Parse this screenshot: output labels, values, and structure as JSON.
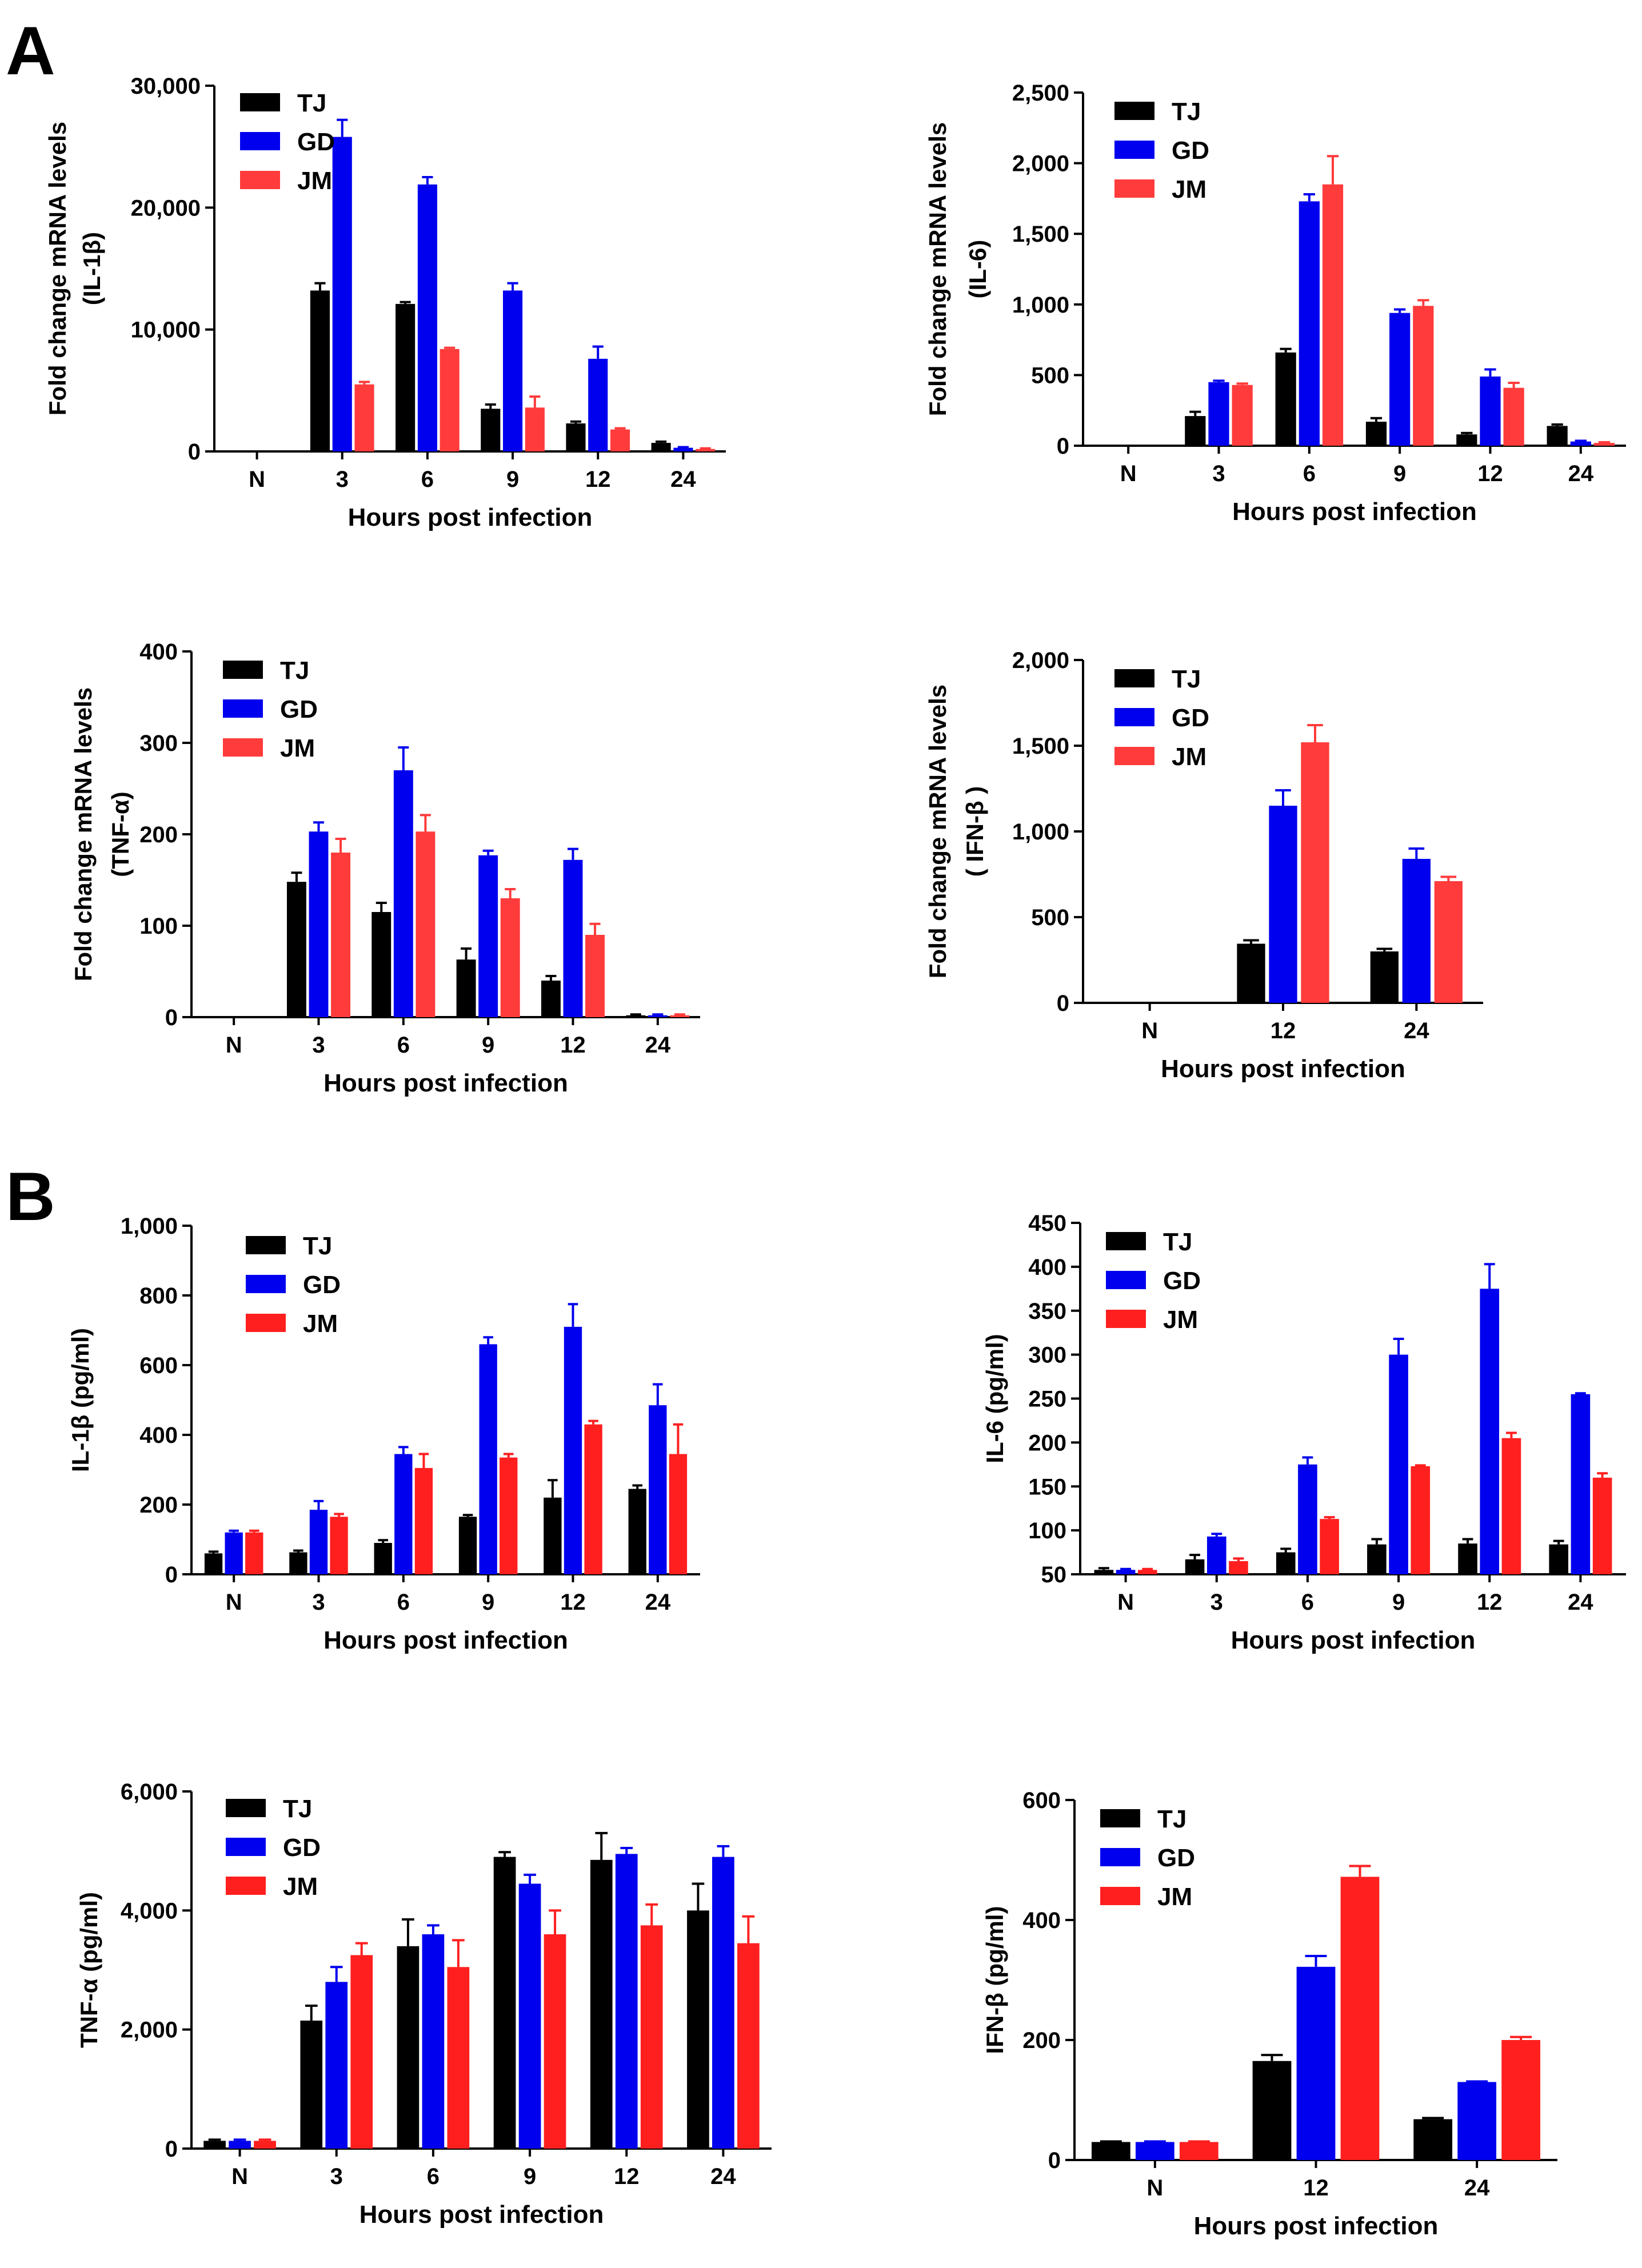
{
  "panel_labels": [
    "A",
    "B"
  ],
  "colors": {
    "TJ": "#000000",
    "GD": "#0000ee",
    "JM": "#ff3b3b",
    "JM_B": "#ff1f1f"
  },
  "chart_data": [
    {
      "type": "bar",
      "title": "",
      "xlabel": "Hours post infection",
      "ylabel": [
        "Fold change mRNA levels",
        "(IL-1β)"
      ],
      "categories": [
        "N",
        "3",
        "6",
        "9",
        "12",
        "24"
      ],
      "ylim": [
        0,
        30000
      ],
      "yticks": [
        0,
        10000,
        20000,
        30000
      ],
      "ytick_labels": [
        "0",
        "10,000",
        "20,000",
        "30,000"
      ],
      "legend": [
        "TJ",
        "GD",
        "JM"
      ],
      "series": [
        {
          "name": "TJ",
          "values": [
            0,
            13200,
            12100,
            3500,
            2300,
            700
          ],
          "errors": [
            0,
            600,
            150,
            350,
            150,
            100
          ]
        },
        {
          "name": "GD",
          "values": [
            0,
            25800,
            21900,
            13200,
            7600,
            300
          ],
          "errors": [
            0,
            1400,
            600,
            600,
            1000,
            50
          ]
        },
        {
          "name": "JM",
          "values": [
            0,
            5500,
            8400,
            3600,
            1800,
            200
          ],
          "errors": [
            0,
            200,
            100,
            900,
            100,
            50
          ]
        }
      ]
    },
    {
      "type": "bar",
      "title": "",
      "xlabel": "Hours post infection",
      "ylabel": [
        "Fold change mRNA levels",
        "(IL-6)"
      ],
      "categories": [
        "N",
        "3",
        "6",
        "9",
        "12",
        "24"
      ],
      "ylim": [
        0,
        2500
      ],
      "yticks": [
        0,
        500,
        1000,
        1500,
        2000,
        2500
      ],
      "ytick_labels": [
        "0",
        "500",
        "1,000",
        "1,500",
        "2,000",
        "2,500"
      ],
      "legend": [
        "TJ",
        "GD",
        "JM"
      ],
      "series": [
        {
          "name": "TJ",
          "values": [
            0,
            210,
            660,
            170,
            80,
            140
          ],
          "errors": [
            0,
            30,
            25,
            25,
            10,
            10
          ]
        },
        {
          "name": "GD",
          "values": [
            0,
            450,
            1730,
            940,
            490,
            30
          ],
          "errors": [
            0,
            10,
            50,
            25,
            50,
            5
          ]
        },
        {
          "name": "JM",
          "values": [
            0,
            430,
            1850,
            990,
            410,
            20
          ],
          "errors": [
            0,
            10,
            200,
            40,
            35,
            5
          ]
        }
      ]
    },
    {
      "type": "bar",
      "title": "",
      "xlabel": "Hours post infection",
      "ylabel": [
        "Fold change mRNA levels",
        "(TNF-α)"
      ],
      "categories": [
        "N",
        "3",
        "6",
        "9",
        "12",
        "24"
      ],
      "ylim": [
        0,
        400
      ],
      "yticks": [
        0,
        100,
        200,
        300,
        400
      ],
      "ytick_labels": [
        "0",
        "100",
        "200",
        "300",
        "400"
      ],
      "legend": [
        "TJ",
        "GD",
        "JM"
      ],
      "series": [
        {
          "name": "TJ",
          "values": [
            0,
            148,
            115,
            63,
            40,
            2
          ],
          "errors": [
            0,
            10,
            10,
            12,
            5,
            1
          ]
        },
        {
          "name": "GD",
          "values": [
            0,
            203,
            270,
            177,
            172,
            2
          ],
          "errors": [
            0,
            10,
            25,
            5,
            12,
            1
          ]
        },
        {
          "name": "JM",
          "values": [
            0,
            180,
            203,
            130,
            90,
            2
          ],
          "errors": [
            0,
            15,
            18,
            10,
            12,
            1
          ]
        }
      ]
    },
    {
      "type": "bar",
      "title": "",
      "xlabel": "Hours post infection",
      "ylabel": [
        "Fold change mRNA levels",
        "( IFN-β )"
      ],
      "categories": [
        "N",
        "12",
        "24"
      ],
      "ylim": [
        0,
        2000
      ],
      "yticks": [
        0,
        500,
        1000,
        1500,
        2000
      ],
      "ytick_labels": [
        "0",
        "500",
        "1,000",
        "1,500",
        "2,000"
      ],
      "legend": [
        "TJ",
        "GD",
        "JM"
      ],
      "series": [
        {
          "name": "TJ",
          "values": [
            0,
            345,
            300
          ],
          "errors": [
            0,
            20,
            15
          ]
        },
        {
          "name": "GD",
          "values": [
            0,
            1150,
            840
          ],
          "errors": [
            0,
            90,
            60
          ]
        },
        {
          "name": "JM",
          "values": [
            0,
            1520,
            710
          ],
          "errors": [
            0,
            100,
            25
          ]
        }
      ]
    },
    {
      "type": "bar",
      "title": "",
      "xlabel": "Hours post infection",
      "ylabel": [
        "IL-1β (pg/ml)"
      ],
      "categories": [
        "N",
        "3",
        "6",
        "9",
        "12",
        "24"
      ],
      "ylim": [
        0,
        1000
      ],
      "yticks": [
        0,
        200,
        400,
        600,
        800,
        1000
      ],
      "ytick_labels": [
        "0",
        "200",
        "400",
        "600",
        "800",
        "1,000"
      ],
      "legend": [
        "TJ",
        "GD",
        "JM"
      ],
      "series": [
        {
          "name": "TJ",
          "values": [
            60,
            63,
            90,
            165,
            220,
            245
          ],
          "errors": [
            5,
            5,
            8,
            5,
            50,
            10
          ]
        },
        {
          "name": "GD",
          "values": [
            120,
            185,
            345,
            660,
            710,
            485
          ],
          "errors": [
            5,
            25,
            20,
            20,
            65,
            60
          ]
        },
        {
          "name": "JM",
          "values": [
            120,
            165,
            305,
            335,
            430,
            345
          ],
          "errors": [
            5,
            8,
            40,
            10,
            10,
            85
          ]
        }
      ]
    },
    {
      "type": "bar",
      "title": "",
      "xlabel": "Hours post infection",
      "ylabel": [
        "IL-6 (pg/ml)"
      ],
      "categories": [
        "N",
        "3",
        "6",
        "9",
        "12",
        "24"
      ],
      "ylim": [
        50,
        450
      ],
      "yticks": [
        50,
        100,
        150,
        200,
        250,
        300,
        350,
        400,
        450
      ],
      "ytick_labels": [
        "50",
        "100",
        "150",
        "200",
        "250",
        "300",
        "350",
        "400",
        "450"
      ],
      "legend": [
        "TJ",
        "GD",
        "JM"
      ],
      "series": [
        {
          "name": "TJ",
          "values": [
            55,
            67,
            75,
            84,
            85,
            84
          ],
          "errors": [
            2,
            5,
            4,
            6,
            5,
            4
          ]
        },
        {
          "name": "GD",
          "values": [
            55,
            93,
            175,
            300,
            375,
            255
          ],
          "errors": [
            1,
            3,
            8,
            18,
            28,
            1
          ]
        },
        {
          "name": "JM",
          "values": [
            55,
            65,
            113,
            173,
            205,
            160
          ],
          "errors": [
            1,
            3,
            2,
            1,
            6,
            5
          ]
        }
      ]
    },
    {
      "type": "bar",
      "title": "",
      "xlabel": "Hours post infection",
      "ylabel": [
        "TNF-α (pg/ml)"
      ],
      "categories": [
        "N",
        "3",
        "6",
        "9",
        "12",
        "24"
      ],
      "ylim": [
        0,
        6000
      ],
      "yticks": [
        0,
        2000,
        4000,
        6000
      ],
      "ytick_labels": [
        "0",
        "2,000",
        "4,000",
        "6,000"
      ],
      "legend": [
        "TJ",
        "GD",
        "JM"
      ],
      "series": [
        {
          "name": "TJ",
          "values": [
            130,
            2150,
            3400,
            4900,
            4850,
            4000
          ],
          "errors": [
            20,
            250,
            450,
            80,
            450,
            450
          ]
        },
        {
          "name": "GD",
          "values": [
            130,
            2800,
            3600,
            4450,
            4950,
            4900
          ],
          "errors": [
            20,
            250,
            150,
            150,
            100,
            180
          ]
        },
        {
          "name": "JM",
          "values": [
            130,
            3250,
            3050,
            3600,
            3750,
            3450
          ],
          "errors": [
            20,
            200,
            450,
            400,
            350,
            450
          ]
        }
      ]
    },
    {
      "type": "bar",
      "title": "",
      "xlabel": "Hours post infection",
      "ylabel": [
        "IFN-β (pg/ml)"
      ],
      "categories": [
        "N",
        "12",
        "24"
      ],
      "ylim": [
        0,
        600
      ],
      "yticks": [
        0,
        200,
        400,
        600
      ],
      "ytick_labels": [
        "0",
        "200",
        "400",
        "600"
      ],
      "legend": [
        "TJ",
        "GD",
        "JM"
      ],
      "series": [
        {
          "name": "TJ",
          "values": [
            30,
            165,
            68
          ],
          "errors": [
            1,
            10,
            2
          ]
        },
        {
          "name": "GD",
          "values": [
            30,
            322,
            130
          ],
          "errors": [
            1,
            18,
            1
          ]
        },
        {
          "name": "JM",
          "values": [
            30,
            472,
            200
          ],
          "errors": [
            1,
            18,
            5
          ]
        }
      ]
    }
  ]
}
